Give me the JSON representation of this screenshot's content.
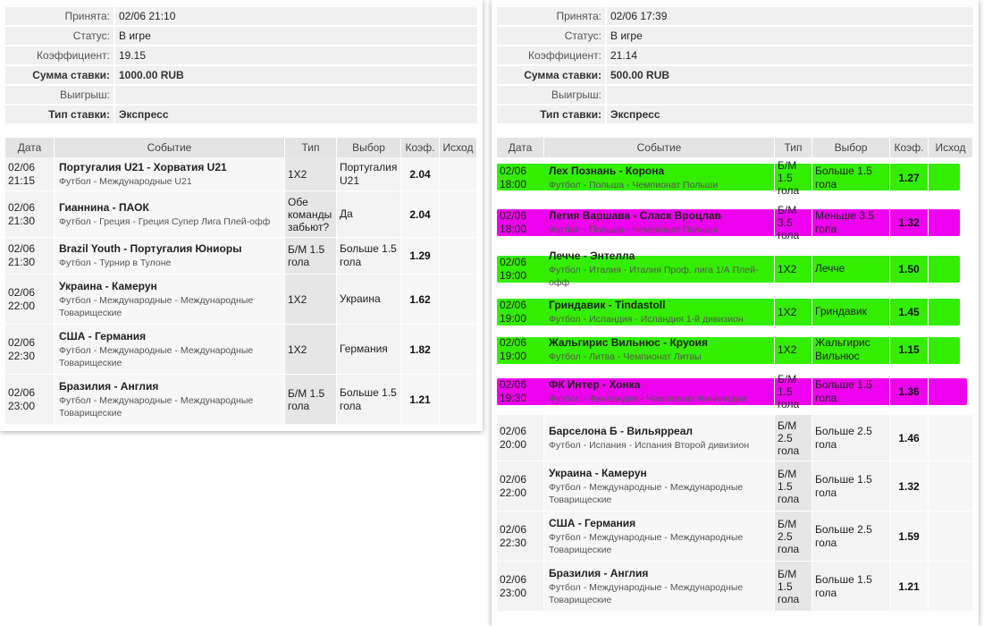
{
  "left": {
    "summary": [
      {
        "label": "Принята:",
        "value": "02/06 21:10",
        "strong": false
      },
      {
        "label": "Статус:",
        "value": "В игре",
        "strong": false
      },
      {
        "label": "Коэффициент:",
        "value": "19.15",
        "strong": false
      },
      {
        "label": "Сумма ставки:",
        "value": "1000.00 RUB",
        "strong": true
      },
      {
        "label": "Выигрыш:",
        "value": "",
        "strong": false
      },
      {
        "label": "Тип ставки:",
        "value": "Экспресс",
        "strong": true
      }
    ],
    "headers": {
      "date": "Дата",
      "event": "Событие",
      "type": "Тип",
      "choice": "Выбор",
      "coef": "Коэф.",
      "result": "Исход"
    },
    "rows": [
      {
        "date": "02/06 21:15",
        "title": "Португалия U21 - Хорватия U21",
        "sub": "Футбол - Международные U21",
        "type": "1X2",
        "choice": "Португалия U21",
        "coef": "2.04"
      },
      {
        "date": "02/06 21:30",
        "title": "Гианнина - ПАОК",
        "sub": "Футбол - Греция - Греция Супер Лига Плей-офф",
        "type": "Обе команды забьют?",
        "choice": "Да",
        "coef": "2.04"
      },
      {
        "date": "02/06 21:30",
        "title": "Brazil Youth - Португалия Юниоры",
        "sub": "Футбол - Турнир в Тулоне",
        "type": "Б/М 1.5 гола",
        "choice": "Больше 1.5 гола",
        "coef": "1.29"
      },
      {
        "date": "02/06 22:00",
        "title": "Украина - Камерун",
        "sub": "Футбол - Международные - Международные Товарищеские",
        "type": "1X2",
        "choice": "Украина",
        "coef": "1.62"
      },
      {
        "date": "02/06 22:30",
        "title": "США - Германия",
        "sub": "Футбол - Международные - Международные Товарищеские",
        "type": "1X2",
        "choice": "Германия",
        "coef": "1.82"
      },
      {
        "date": "02/06 23:00",
        "title": "Бразилия - Англия",
        "sub": "Футбол - Международные - Международные Товарищеские",
        "type": "Б/М 1.5 гола",
        "choice": "Больше 1.5 гола",
        "coef": "1.21"
      }
    ]
  },
  "right": {
    "summary": [
      {
        "label": "Принята:",
        "value": "02/06 17:39",
        "strong": false
      },
      {
        "label": "Статус:",
        "value": "В игре",
        "strong": false
      },
      {
        "label": "Коэффициент:",
        "value": "21.14",
        "strong": false
      },
      {
        "label": "Сумма ставки:",
        "value": "500.00 RUB",
        "strong": true
      },
      {
        "label": "Выигрыш:",
        "value": "",
        "strong": false
      },
      {
        "label": "Тип ставки:",
        "value": "Экспресс",
        "strong": true
      }
    ],
    "headers": {
      "date": "Дата",
      "event": "Событие",
      "type": "Тип",
      "choice": "Выбор",
      "coef": "Коэф.",
      "result": "Исход"
    },
    "rows": [
      {
        "date": "02/06 18:00",
        "title": "Лех Познань - Корона",
        "sub": "Футбол - Польша - Чемпионат Польши",
        "type": "Б/М 1.5 гола",
        "choice": "Больше 1.5 гола",
        "coef": "1.27",
        "highlight": "green"
      },
      {
        "date": "02/06 18:00",
        "title": "Легия Варшава - Сласк Вроцлав",
        "sub": "Футбол - Польша - Чемпионат Польши",
        "type": "Б/М 3.5 гола",
        "choice": "Меньше 3.5 гола",
        "coef": "1.32",
        "highlight": "magenta"
      },
      {
        "date": "02/06 19:00",
        "title": "Лечче - Энтелла",
        "sub": "Футбол - Италия - Италия Проф. лига 1/А Плей-офф",
        "type": "1X2",
        "choice": "Лечче",
        "coef": "1.50",
        "highlight": "green"
      },
      {
        "date": "02/06 19:00",
        "title": "Гриндавик - Tindastoll",
        "sub": "Футбол - Исландия - Исландия 1-й дивизион",
        "type": "1X2",
        "choice": "Гриндавик",
        "coef": "1.45",
        "highlight": "green"
      },
      {
        "date": "02/06 19:00",
        "title": "Жальгирис Вильнюс - Круоия",
        "sub": "Футбол - Литва - Чемпионат Литвы",
        "type": "1X2",
        "choice": "Жальгирис Вильнюс",
        "coef": "1.15",
        "highlight": "green"
      },
      {
        "date": "02/06 19:30",
        "title": "ФК Интер - Хонка",
        "sub": "Футбол - Финляндия - Чемпионат Финляндии",
        "type": "Б/М 1.5 гола",
        "choice": "Больше 1.5 гола",
        "coef": "1.36",
        "highlight": "magenta"
      },
      {
        "date": "02/06 20:00",
        "title": "Барселона Б - Вильярреал",
        "sub": "Футбол - Испания - Испания Второй дивизион",
        "type": "Б/М 2.5 гола",
        "choice": "Больше 2.5 гола",
        "coef": "1.46",
        "highlight": ""
      },
      {
        "date": "02/06 22:00",
        "title": "Украина - Камерун",
        "sub": "Футбол - Международные - Международные Товарищеские",
        "type": "Б/М 1.5 гола",
        "choice": "Больше 1.5 гола",
        "coef": "1.32",
        "highlight": ""
      },
      {
        "date": "02/06 22:30",
        "title": "США - Германия",
        "sub": "Футбол - Международные - Международные Товарищеские",
        "type": "Б/М 2.5 гола",
        "choice": "Больше 2.5 гола",
        "coef": "1.59",
        "highlight": ""
      },
      {
        "date": "02/06 23:00",
        "title": "Бразилия - Англия",
        "sub": "Футбол - Международные - Международные Товарищеские",
        "type": "Б/М 1.5 гола",
        "choice": "Больше 1.5 гола",
        "coef": "1.21",
        "highlight": ""
      }
    ]
  },
  "colors": {
    "green": "#33ee00",
    "magenta": "#ee00ee"
  }
}
